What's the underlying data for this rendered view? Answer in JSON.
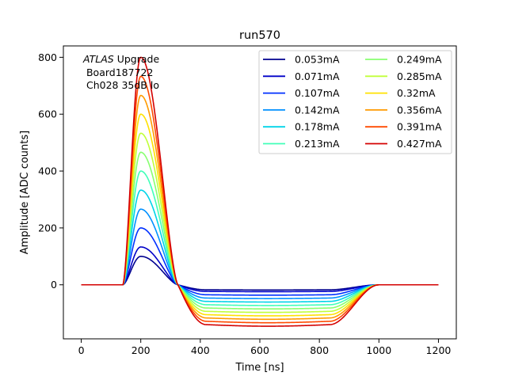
{
  "chart_data": {
    "type": "line",
    "title": "run570",
    "xlabel": "Time [ns]",
    "ylabel": "Amplitude [ADC counts]",
    "xlim": [
      -60,
      1260
    ],
    "ylim": [
      -190,
      840
    ],
    "xticks": [
      0,
      200,
      400,
      600,
      800,
      1000,
      1200
    ],
    "yticks": [
      0,
      200,
      400,
      600,
      800
    ],
    "annotation": {
      "italic": "ATLAS",
      "line1_rest": " Upgrade",
      "line2": " Board187722",
      "line3": " Ch028 35dB lo"
    },
    "legend_position": "upper right, two columns",
    "pulse_shape": {
      "baseline_start_ns": 0,
      "rise_start_ns": 140,
      "peak_time_ns": 200,
      "zero_cross_ns": 325,
      "undershoot_plateau_from_ns": 420,
      "undershoot_plateau_to_ns": 835,
      "recovery_end_ns": 1000,
      "end_ns": 1200,
      "undershoot_ratio": 0.175
    },
    "series": [
      {
        "name": "0.053mA",
        "current_mA": 0.053,
        "peak": 100,
        "color": "#00008f"
      },
      {
        "name": "0.071mA",
        "current_mA": 0.071,
        "peak": 133,
        "color": "#0000c8"
      },
      {
        "name": "0.107mA",
        "current_mA": 0.107,
        "peak": 200,
        "color": "#0030ff"
      },
      {
        "name": "0.142mA",
        "current_mA": 0.142,
        "peak": 266,
        "color": "#0090ff"
      },
      {
        "name": "0.178mA",
        "current_mA": 0.178,
        "peak": 333,
        "color": "#00d4e8"
      },
      {
        "name": "0.213mA",
        "current_mA": 0.213,
        "peak": 400,
        "color": "#40ffb8"
      },
      {
        "name": "0.249mA",
        "current_mA": 0.249,
        "peak": 466,
        "color": "#88ff70"
      },
      {
        "name": "0.285mA",
        "current_mA": 0.285,
        "peak": 533,
        "color": "#c0ff3a"
      },
      {
        "name": "0.32mA",
        "current_mA": 0.32,
        "peak": 600,
        "color": "#ffe100"
      },
      {
        "name": "0.356mA",
        "current_mA": 0.356,
        "peak": 666,
        "color": "#ff9a00"
      },
      {
        "name": "0.391mA",
        "current_mA": 0.391,
        "peak": 733,
        "color": "#ff4a00"
      },
      {
        "name": "0.427mA",
        "current_mA": 0.427,
        "peak": 800,
        "color": "#d40000"
      }
    ]
  }
}
